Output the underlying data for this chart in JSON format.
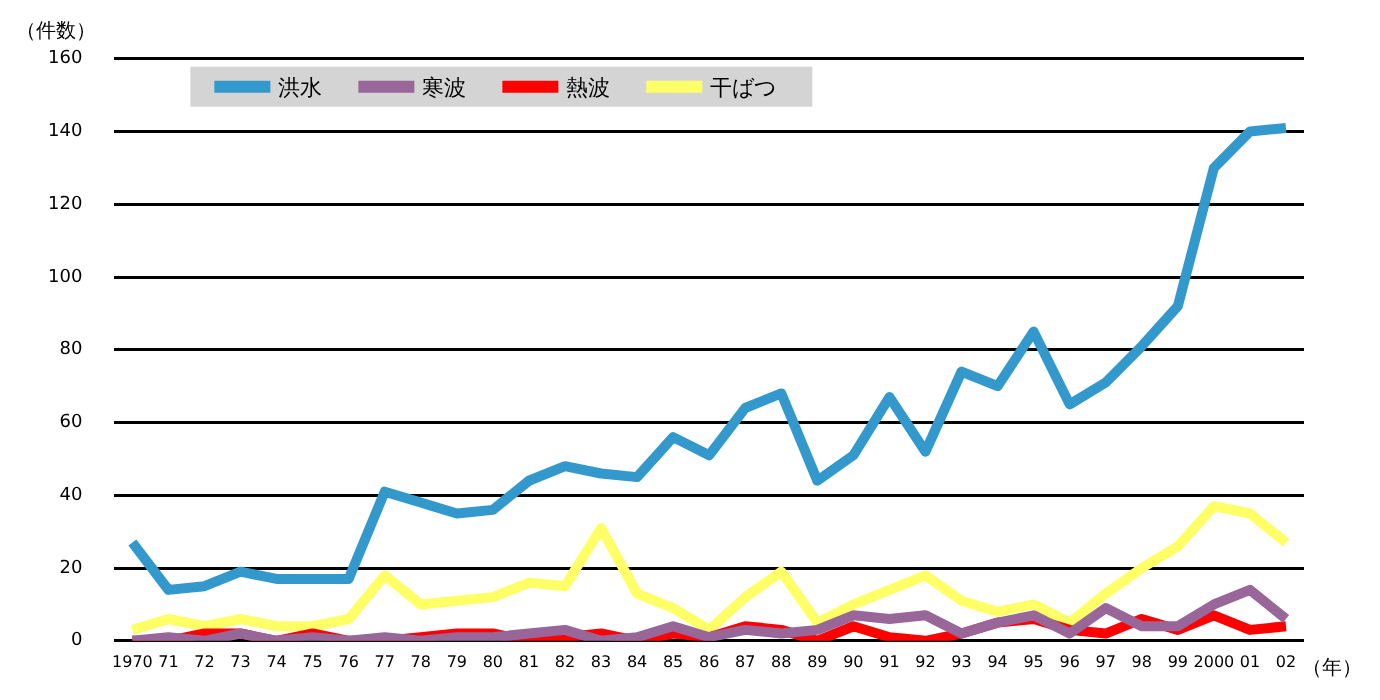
{
  "chart_data": {
    "type": "line",
    "ylabel": "（件数）",
    "xlabel": "（年）",
    "categories": [
      "1970",
      "71",
      "72",
      "73",
      "74",
      "75",
      "76",
      "77",
      "78",
      "79",
      "80",
      "81",
      "82",
      "83",
      "84",
      "85",
      "86",
      "87",
      "88",
      "89",
      "90",
      "91",
      "92",
      "93",
      "94",
      "95",
      "96",
      "97",
      "98",
      "99",
      "2000",
      "01",
      "02"
    ],
    "series": [
      {
        "name": "洪水",
        "color": "#3399cc",
        "values": [
          27,
          14,
          15,
          19,
          17,
          17,
          17,
          41,
          38,
          35,
          36,
          44,
          48,
          46,
          45,
          56,
          51,
          64,
          68,
          44,
          51,
          67,
          52,
          74,
          70,
          85,
          65,
          71,
          81,
          92,
          130,
          140,
          141
        ]
      },
      {
        "name": "寒波",
        "color": "#996699",
        "values": [
          0,
          1,
          0,
          2,
          0,
          1,
          0,
          1,
          0,
          1,
          1,
          2,
          3,
          0,
          1,
          4,
          1,
          3,
          2,
          3,
          7,
          6,
          7,
          2,
          5,
          7,
          2,
          9,
          4,
          4,
          10,
          14,
          6
        ]
      },
      {
        "name": "熱波",
        "color": "#ff0000",
        "values": [
          0,
          0,
          2,
          2,
          0,
          2,
          0,
          0,
          1,
          2,
          2,
          0,
          1,
          2,
          0,
          2,
          1,
          4,
          3,
          0,
          4,
          1,
          0,
          2,
          5,
          6,
          3,
          2,
          6,
          3,
          7,
          3,
          4
        ]
      },
      {
        "name": "干ばつ",
        "color": "#ffff66",
        "values": [
          3,
          6,
          4,
          6,
          4,
          4,
          6,
          18,
          10,
          11,
          12,
          16,
          15,
          31,
          13,
          9,
          3,
          12,
          19,
          5,
          10,
          14,
          18,
          11,
          8,
          10,
          5,
          13,
          20,
          26,
          37,
          35,
          27
        ]
      }
    ],
    "ylim": [
      0,
      160
    ],
    "yticks": [
      0,
      20,
      40,
      60,
      80,
      100,
      120,
      140,
      160
    ],
    "grid": "y",
    "legend": "top",
    "marker": "none",
    "line_style": "solid"
  }
}
